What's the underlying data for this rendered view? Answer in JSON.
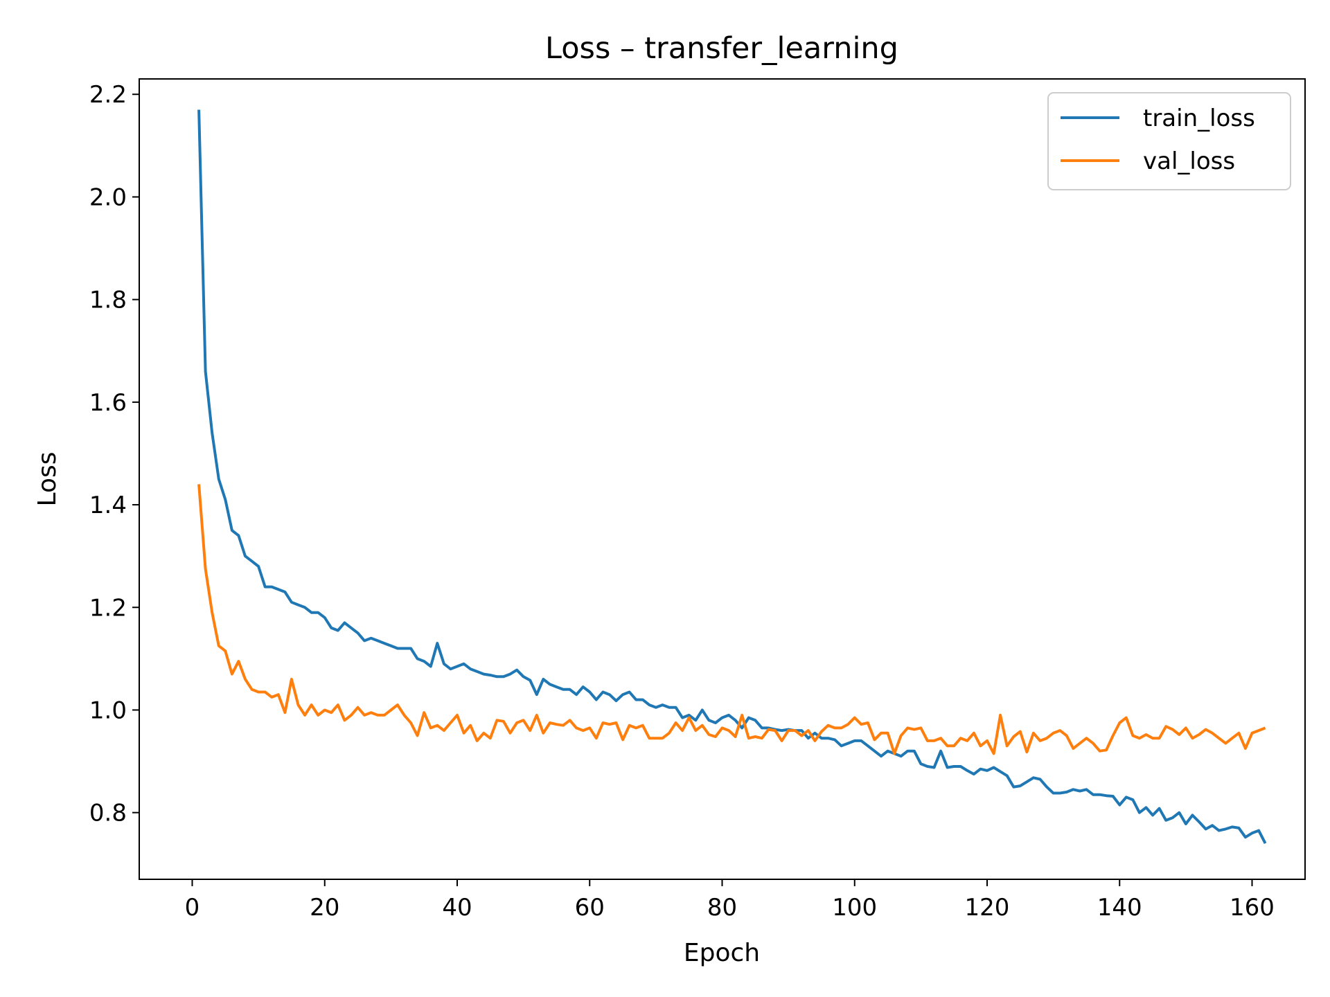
{
  "chart_data": {
    "type": "line",
    "title": "Loss – transfer_learning",
    "xlabel": "Epoch",
    "ylabel": "Loss",
    "xlim": [
      -8,
      168
    ],
    "ylim": [
      0.67,
      2.23
    ],
    "xticks": [
      0,
      20,
      40,
      60,
      80,
      100,
      120,
      140,
      160
    ],
    "xtick_labels": [
      "0",
      "20",
      "40",
      "60",
      "80",
      "100",
      "120",
      "140",
      "160"
    ],
    "yticks": [
      0.8,
      1.0,
      1.2,
      1.4,
      1.6,
      1.8,
      2.0,
      2.2
    ],
    "ytick_labels": [
      "0.8",
      "1.0",
      "1.2",
      "1.4",
      "1.6",
      "1.8",
      "2.0",
      "2.2"
    ],
    "grid": false,
    "legend_position": "top-right",
    "x_start": 1,
    "series": [
      {
        "name": "train_loss",
        "color": "#1f77b4",
        "values": [
          2.17,
          1.66,
          1.54,
          1.45,
          1.41,
          1.35,
          1.34,
          1.3,
          1.29,
          1.28,
          1.24,
          1.24,
          1.235,
          1.23,
          1.21,
          1.205,
          1.2,
          1.19,
          1.19,
          1.18,
          1.16,
          1.155,
          1.17,
          1.16,
          1.15,
          1.135,
          1.14,
          1.135,
          1.13,
          1.125,
          1.12,
          1.12,
          1.12,
          1.1,
          1.095,
          1.085,
          1.13,
          1.09,
          1.08,
          1.085,
          1.09,
          1.08,
          1.075,
          1.07,
          1.068,
          1.065,
          1.065,
          1.07,
          1.078,
          1.065,
          1.058,
          1.03,
          1.06,
          1.05,
          1.045,
          1.04,
          1.04,
          1.03,
          1.045,
          1.035,
          1.02,
          1.035,
          1.03,
          1.018,
          1.03,
          1.035,
          1.02,
          1.02,
          1.01,
          1.005,
          1.01,
          1.005,
          1.005,
          0.985,
          0.99,
          0.98,
          1.0,
          0.98,
          0.975,
          0.985,
          0.99,
          0.98,
          0.965,
          0.985,
          0.98,
          0.965,
          0.965,
          0.962,
          0.96,
          0.962,
          0.96,
          0.96,
          0.945,
          0.955,
          0.945,
          0.945,
          0.942,
          0.93,
          0.935,
          0.94,
          0.94,
          0.93,
          0.92,
          0.91,
          0.92,
          0.915,
          0.91,
          0.92,
          0.92,
          0.895,
          0.89,
          0.888,
          0.92,
          0.888,
          0.89,
          0.89,
          0.882,
          0.875,
          0.885,
          0.882,
          0.888,
          0.88,
          0.872,
          0.85,
          0.852,
          0.86,
          0.868,
          0.865,
          0.85,
          0.838,
          0.838,
          0.84,
          0.845,
          0.842,
          0.845,
          0.835,
          0.835,
          0.833,
          0.832,
          0.815,
          0.83,
          0.825,
          0.8,
          0.81,
          0.795,
          0.808,
          0.785,
          0.79,
          0.8,
          0.778,
          0.795,
          0.782,
          0.768,
          0.775,
          0.765,
          0.768,
          0.772,
          0.77,
          0.752,
          0.76,
          0.765,
          0.74
        ]
      },
      {
        "name": "val_loss",
        "color": "#ff7f0e",
        "values": [
          1.44,
          1.275,
          1.19,
          1.125,
          1.115,
          1.07,
          1.095,
          1.06,
          1.04,
          1.035,
          1.035,
          1.025,
          1.03,
          0.995,
          1.06,
          1.01,
          0.99,
          1.01,
          0.99,
          1.0,
          0.995,
          1.01,
          0.98,
          0.99,
          1.005,
          0.99,
          0.995,
          0.99,
          0.99,
          1.0,
          1.01,
          0.99,
          0.975,
          0.95,
          0.995,
          0.965,
          0.97,
          0.96,
          0.975,
          0.99,
          0.955,
          0.97,
          0.94,
          0.955,
          0.945,
          0.98,
          0.978,
          0.955,
          0.975,
          0.98,
          0.96,
          0.99,
          0.955,
          0.975,
          0.972,
          0.97,
          0.98,
          0.965,
          0.96,
          0.965,
          0.945,
          0.975,
          0.972,
          0.975,
          0.942,
          0.97,
          0.965,
          0.97,
          0.945,
          0.945,
          0.945,
          0.955,
          0.975,
          0.96,
          0.985,
          0.96,
          0.97,
          0.952,
          0.948,
          0.965,
          0.96,
          0.948,
          0.99,
          0.945,
          0.948,
          0.945,
          0.962,
          0.96,
          0.94,
          0.96,
          0.96,
          0.95,
          0.96,
          0.94,
          0.958,
          0.97,
          0.965,
          0.965,
          0.972,
          0.985,
          0.972,
          0.975,
          0.942,
          0.955,
          0.955,
          0.915,
          0.95,
          0.965,
          0.962,
          0.965,
          0.94,
          0.94,
          0.945,
          0.93,
          0.93,
          0.945,
          0.94,
          0.955,
          0.93,
          0.94,
          0.915,
          0.99,
          0.93,
          0.948,
          0.958,
          0.918,
          0.955,
          0.94,
          0.945,
          0.955,
          0.96,
          0.95,
          0.925,
          0.935,
          0.945,
          0.935,
          0.92,
          0.922,
          0.95,
          0.975,
          0.985,
          0.95,
          0.945,
          0.952,
          0.945,
          0.945,
          0.968,
          0.962,
          0.952,
          0.965,
          0.945,
          0.952,
          0.962,
          0.955,
          0.945,
          0.935,
          0.945,
          0.955,
          0.925,
          0.955,
          0.96,
          0.965
        ]
      }
    ]
  }
}
